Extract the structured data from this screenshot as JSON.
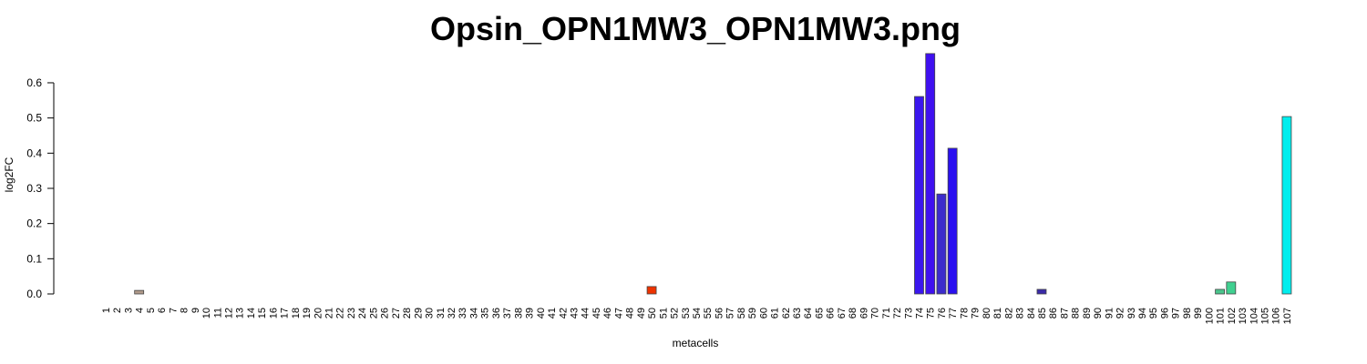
{
  "chart_data": {
    "type": "bar",
    "title": "Opsin_OPN1MW3_OPN1MW3.png",
    "x_label": "metacells",
    "y_label": "log2FC",
    "categories": [
      "1",
      "2",
      "3",
      "4",
      "5",
      "6",
      "7",
      "8",
      "9",
      "10",
      "11",
      "12",
      "13",
      "14",
      "15",
      "16",
      "17",
      "18",
      "19",
      "20",
      "21",
      "22",
      "23",
      "24",
      "25",
      "26",
      "27",
      "28",
      "29",
      "30",
      "31",
      "32",
      "33",
      "34",
      "35",
      "36",
      "37",
      "38",
      "39",
      "40",
      "41",
      "42",
      "43",
      "44",
      "45",
      "46",
      "47",
      "48",
      "49",
      "50",
      "51",
      "52",
      "53",
      "54",
      "55",
      "56",
      "57",
      "58",
      "59",
      "60",
      "61",
      "62",
      "63",
      "64",
      "65",
      "66",
      "67",
      "68",
      "69",
      "70",
      "71",
      "72",
      "73",
      "74",
      "75",
      "76",
      "77",
      "78",
      "79",
      "80",
      "81",
      "82",
      "83",
      "84",
      "85",
      "86",
      "87",
      "88",
      "89",
      "90",
      "91",
      "92",
      "93",
      "94",
      "95",
      "96",
      "97",
      "98",
      "99",
      "100",
      "101",
      "102",
      "103",
      "104",
      "105",
      "106",
      "107"
    ],
    "values": [
      0,
      0,
      0,
      0.01,
      0,
      0,
      0,
      0,
      0,
      0,
      0,
      0,
      0,
      0,
      0,
      0,
      0,
      0,
      0,
      0,
      0,
      0,
      0,
      0,
      0,
      0,
      0,
      0,
      0,
      0,
      0,
      0,
      0,
      0,
      0,
      0,
      0,
      0,
      0,
      0,
      0,
      0,
      0,
      0,
      0,
      0,
      0,
      0,
      0,
      0.021,
      0,
      0,
      0,
      0,
      0,
      0,
      0,
      0,
      0,
      0,
      0,
      0,
      0,
      0,
      0,
      0,
      0,
      0,
      0,
      0,
      0,
      0,
      0,
      0.561,
      0.683,
      0.284,
      0.414,
      0,
      0,
      0,
      0,
      0,
      0,
      0,
      0.013,
      0,
      0,
      0,
      0,
      0,
      0,
      0,
      0,
      0,
      0,
      0,
      0,
      0,
      0,
      0,
      0.013,
      0.034,
      0,
      0,
      0,
      0,
      0.504
    ],
    "colors": [
      "#999999",
      "#999999",
      "#999999",
      "#b09a8a",
      "#999999",
      "#999999",
      "#999999",
      "#999999",
      "#999999",
      "#999999",
      "#999999",
      "#999999",
      "#999999",
      "#999999",
      "#999999",
      "#999999",
      "#999999",
      "#999999",
      "#999999",
      "#999999",
      "#999999",
      "#999999",
      "#999999",
      "#999999",
      "#999999",
      "#999999",
      "#999999",
      "#999999",
      "#999999",
      "#999999",
      "#999999",
      "#999999",
      "#999999",
      "#999999",
      "#999999",
      "#999999",
      "#999999",
      "#999999",
      "#999999",
      "#999999",
      "#999999",
      "#999999",
      "#999999",
      "#999999",
      "#999999",
      "#999999",
      "#999999",
      "#999999",
      "#999999",
      "#ee3300",
      "#999999",
      "#999999",
      "#999999",
      "#999999",
      "#999999",
      "#999999",
      "#999999",
      "#999999",
      "#999999",
      "#999999",
      "#999999",
      "#999999",
      "#999999",
      "#999999",
      "#999999",
      "#999999",
      "#999999",
      "#999999",
      "#999999",
      "#999999",
      "#999999",
      "#999999",
      "#999999",
      "#3a16ee",
      "#3f10f0",
      "#3c2ccc",
      "#2a10f0",
      "#999999",
      "#999999",
      "#999999",
      "#999999",
      "#999999",
      "#999999",
      "#999999",
      "#3a2aa8",
      "#999999",
      "#999999",
      "#999999",
      "#999999",
      "#999999",
      "#999999",
      "#999999",
      "#999999",
      "#999999",
      "#999999",
      "#999999",
      "#999999",
      "#999999",
      "#999999",
      "#999999",
      "#4cc48c",
      "#40d090",
      "#999999",
      "#999999",
      "#999999",
      "#999999",
      "#00eeee"
    ],
    "ylim": [
      0,
      0.7
    ],
    "yticks": [
      {
        "value": 0,
        "label": "0.0"
      },
      0.1,
      0.2,
      0.3,
      0.4,
      0.5,
      0.6
    ]
  }
}
